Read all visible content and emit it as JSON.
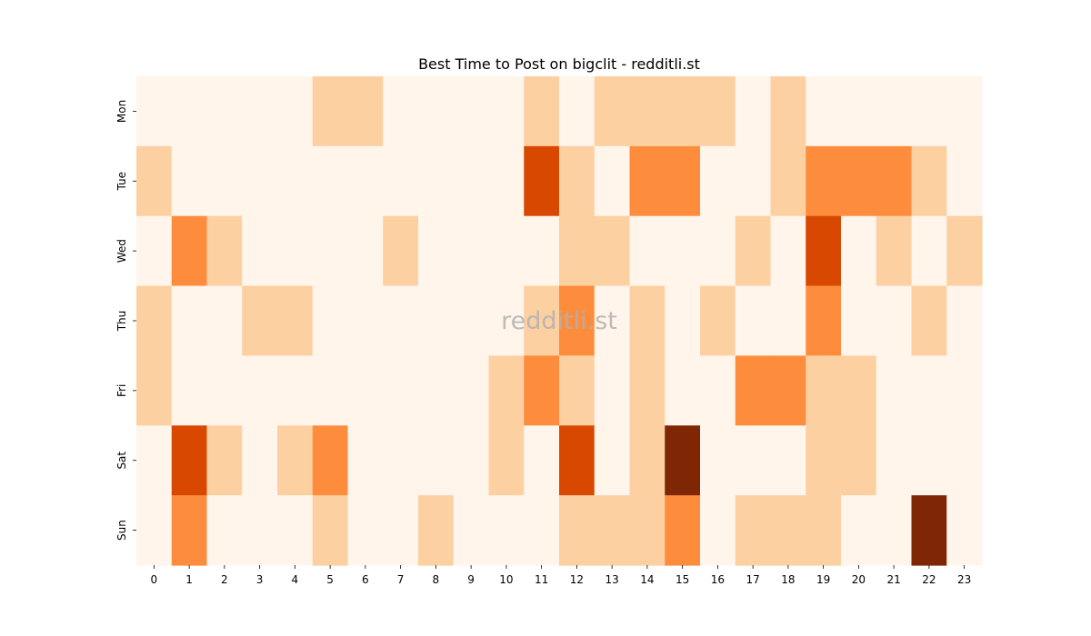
{
  "chart_data": {
    "type": "heatmap",
    "title": "Best Time to Post on bigclit - redditli.st",
    "xlabel": "",
    "ylabel": "",
    "x_categories": [
      "0",
      "1",
      "2",
      "3",
      "4",
      "5",
      "6",
      "7",
      "8",
      "9",
      "10",
      "11",
      "12",
      "13",
      "14",
      "15",
      "16",
      "17",
      "18",
      "19",
      "20",
      "21",
      "22",
      "23"
    ],
    "y_categories": [
      "Mon",
      "Tue",
      "Wed",
      "Thu",
      "Fri",
      "Sat",
      "Sun"
    ],
    "values": [
      [
        0,
        0,
        0,
        0,
        0,
        1,
        1,
        0,
        0,
        0,
        0,
        1,
        0,
        1,
        1,
        1,
        1,
        0,
        1,
        0,
        0,
        0,
        0,
        0
      ],
      [
        1,
        0,
        0,
        0,
        0,
        0,
        0,
        0,
        0,
        0,
        0,
        3,
        1,
        0,
        2,
        2,
        0,
        0,
        1,
        2,
        2,
        2,
        1,
        0
      ],
      [
        0,
        2,
        1,
        0,
        0,
        0,
        0,
        1,
        0,
        0,
        0,
        0,
        1,
        1,
        0,
        0,
        0,
        1,
        0,
        3,
        0,
        1,
        0,
        1
      ],
      [
        1,
        0,
        0,
        1,
        1,
        0,
        0,
        0,
        0,
        0,
        0,
        1,
        2,
        0,
        1,
        0,
        1,
        0,
        0,
        2,
        0,
        0,
        1,
        0
      ],
      [
        1,
        0,
        0,
        0,
        0,
        0,
        0,
        0,
        0,
        0,
        1,
        2,
        1,
        0,
        1,
        0,
        0,
        2,
        2,
        1,
        1,
        0,
        0,
        0
      ],
      [
        0,
        3,
        1,
        0,
        1,
        2,
        0,
        0,
        0,
        0,
        1,
        0,
        3,
        0,
        1,
        4,
        0,
        0,
        0,
        1,
        1,
        0,
        0,
        0
      ],
      [
        0,
        2,
        0,
        0,
        0,
        1,
        0,
        0,
        1,
        0,
        0,
        0,
        1,
        1,
        1,
        2,
        0,
        1,
        1,
        1,
        0,
        0,
        4,
        0
      ]
    ],
    "colorscale": [
      "#fff5eb",
      "#fdd0a2",
      "#fd8d3c",
      "#d94801",
      "#7f2704"
    ],
    "colorbar": false,
    "grid": false,
    "watermark": "redditli.st"
  }
}
